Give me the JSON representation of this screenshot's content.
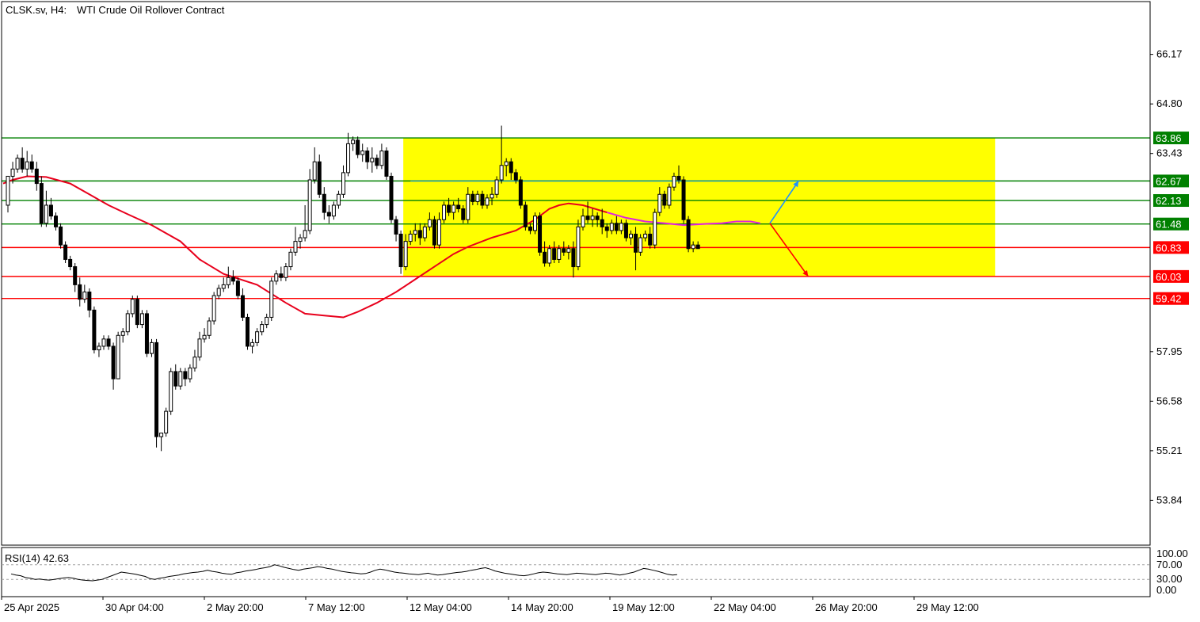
{
  "header": {
    "symbol_label": "CLSK.sv, H4:",
    "description": "WTI Crude Oil Rollover Contract"
  },
  "rsi": {
    "label": "RSI(14) 42.63",
    "period": 14,
    "value": 42.63,
    "levels": [
      "100.00",
      "70.00",
      "30.00",
      "0.00"
    ],
    "values": [
      45,
      42,
      40,
      35,
      33,
      30,
      31,
      29,
      28,
      30,
      32,
      34,
      35,
      33,
      30,
      28,
      27,
      26,
      28,
      30,
      35,
      40,
      45,
      50,
      48,
      46,
      44,
      41,
      38,
      32,
      30,
      33,
      35,
      38,
      40,
      42,
      45,
      47,
      49,
      50,
      52,
      55,
      52,
      50,
      47,
      45,
      44,
      48,
      50,
      53,
      55,
      57,
      60,
      62,
      65,
      70,
      67,
      63,
      60,
      57,
      55,
      58,
      60,
      62,
      65,
      63,
      60,
      58,
      55,
      52,
      50,
      48,
      47,
      45,
      46,
      50,
      55,
      58,
      56,
      53,
      50,
      48,
      47,
      45,
      44,
      43,
      45,
      47,
      44,
      42,
      43,
      45,
      47,
      49,
      50,
      52,
      55,
      57,
      60,
      62,
      58,
      53,
      50,
      47,
      45,
      43,
      41,
      40,
      42,
      45,
      48,
      50,
      49,
      47,
      45,
      44,
      43,
      45,
      47,
      46,
      45,
      44,
      43,
      45,
      47,
      46,
      44,
      42,
      44,
      47,
      50,
      55,
      60,
      58,
      55,
      52,
      48,
      44,
      42,
      43
    ]
  },
  "colors": {
    "support_line": "#ff0000",
    "resistance_line": "#008000",
    "ma_slow": "#e8001c",
    "ma_fast": "#e020e0",
    "range_box": "#ffff00",
    "mid_line": "#0095ff",
    "bull_candle": "#ffffff",
    "bear_candle": "#000000",
    "recent_candle": "#0000ff",
    "arrow_up": "#1e90ff",
    "arrow_down": "#ff0000"
  },
  "chart_data": {
    "type": "candlestick",
    "title": "CLSK.sv, H4:  WTI Crude Oil Rollover Contract",
    "ylim": [
      52.6,
      67.63
    ],
    "y_ticks": [
      "66.17",
      "64.80",
      "63.43",
      "57.95",
      "56.58",
      "55.21",
      "53.84"
    ],
    "x_ticks": [
      "25 Apr 2025",
      "30 Apr 04:00",
      "2 May 20:00",
      "7 May 12:00",
      "12 May 04:00",
      "14 May 20:00",
      "19 May 12:00",
      "22 May 04:00",
      "26 May 20:00",
      "29 May 12:00"
    ],
    "levels": [
      {
        "value": 63.86,
        "label": "63.86",
        "kind": "resistance"
      },
      {
        "value": 62.67,
        "label": "62.67",
        "kind": "resistance"
      },
      {
        "value": 62.13,
        "label": "62.13",
        "kind": "resistance"
      },
      {
        "value": 61.48,
        "label": "61.48",
        "kind": "resistance"
      },
      {
        "value": 60.83,
        "label": "60.83",
        "kind": "support"
      },
      {
        "value": 60.03,
        "label": "60.03",
        "kind": "support"
      },
      {
        "value": 59.42,
        "label": "59.42",
        "kind": "support"
      }
    ],
    "range_box": {
      "start_index": 83,
      "end_index": 206,
      "top": 63.86,
      "bottom": 60.03
    },
    "candles": [
      [
        62.0,
        62.8,
        61.8,
        62.8
      ],
      [
        62.8,
        63.2,
        62.6,
        63.0
      ],
      [
        63.0,
        63.4,
        62.9,
        63.3
      ],
      [
        63.3,
        63.6,
        62.9,
        63.0
      ],
      [
        63.0,
        63.5,
        62.8,
        63.2
      ],
      [
        63.2,
        63.4,
        62.9,
        63.0
      ],
      [
        63.0,
        63.2,
        62.4,
        62.6
      ],
      [
        62.6,
        62.8,
        61.4,
        61.5
      ],
      [
        61.5,
        62.4,
        61.4,
        62.0
      ],
      [
        62.0,
        62.2,
        61.6,
        61.7
      ],
      [
        61.7,
        61.8,
        61.3,
        61.4
      ],
      [
        61.4,
        61.5,
        60.8,
        60.9
      ],
      [
        60.9,
        61.0,
        60.4,
        60.5
      ],
      [
        60.5,
        60.6,
        60.2,
        60.3
      ],
      [
        60.3,
        60.4,
        59.6,
        59.8
      ],
      [
        59.8,
        60.0,
        59.2,
        59.4
      ],
      [
        59.4,
        59.8,
        59.3,
        59.6
      ],
      [
        59.6,
        59.7,
        58.9,
        59.1
      ],
      [
        59.1,
        59.2,
        57.9,
        58.0
      ],
      [
        58.0,
        58.2,
        57.8,
        58.1
      ],
      [
        58.1,
        58.4,
        58.0,
        58.3
      ],
      [
        58.3,
        58.4,
        58.0,
        58.1
      ],
      [
        58.1,
        58.2,
        56.9,
        57.2
      ],
      [
        57.2,
        58.5,
        57.2,
        58.4
      ],
      [
        58.4,
        58.6,
        58.2,
        58.5
      ],
      [
        58.5,
        59.1,
        58.4,
        59.0
      ],
      [
        59.0,
        59.5,
        58.9,
        59.4
      ],
      [
        59.4,
        59.5,
        58.6,
        58.7
      ],
      [
        58.7,
        59.1,
        58.6,
        59.0
      ],
      [
        59.0,
        59.1,
        57.8,
        57.9
      ],
      [
        57.9,
        58.3,
        57.8,
        58.2
      ],
      [
        58.2,
        58.3,
        55.3,
        55.6
      ],
      [
        55.6,
        55.7,
        55.2,
        55.7
      ],
      [
        55.7,
        56.4,
        55.6,
        56.3
      ],
      [
        56.3,
        57.5,
        56.2,
        57.4
      ],
      [
        57.4,
        57.6,
        56.9,
        57.0
      ],
      [
        57.0,
        57.5,
        56.9,
        57.4
      ],
      [
        57.4,
        57.5,
        57.0,
        57.2
      ],
      [
        57.2,
        57.6,
        57.1,
        57.5
      ],
      [
        57.5,
        58.0,
        57.4,
        57.8
      ],
      [
        57.8,
        58.5,
        57.7,
        58.3
      ],
      [
        58.3,
        58.6,
        58.2,
        58.4
      ],
      [
        58.4,
        58.9,
        58.3,
        58.8
      ],
      [
        58.8,
        59.6,
        58.7,
        59.5
      ],
      [
        59.5,
        59.8,
        59.4,
        59.7
      ],
      [
        59.7,
        60.0,
        59.6,
        59.8
      ],
      [
        59.8,
        60.3,
        59.7,
        60.0
      ],
      [
        60.0,
        60.2,
        59.8,
        59.9
      ],
      [
        59.9,
        60.0,
        59.4,
        59.5
      ],
      [
        59.5,
        59.7,
        58.8,
        58.9
      ],
      [
        58.9,
        59.0,
        58.0,
        58.1
      ],
      [
        58.1,
        58.3,
        57.9,
        58.2
      ],
      [
        58.2,
        58.6,
        58.1,
        58.5
      ],
      [
        58.5,
        58.8,
        58.4,
        58.7
      ],
      [
        58.7,
        59.0,
        58.6,
        58.9
      ],
      [
        58.9,
        60.0,
        58.8,
        59.9
      ],
      [
        59.9,
        60.2,
        59.8,
        60.1
      ],
      [
        60.1,
        60.3,
        59.9,
        60.0
      ],
      [
        60.0,
        60.4,
        59.9,
        60.3
      ],
      [
        60.3,
        60.8,
        60.2,
        60.7
      ],
      [
        60.7,
        61.4,
        60.6,
        61.0
      ],
      [
        61.0,
        61.2,
        60.8,
        61.1
      ],
      [
        61.1,
        62.0,
        61.0,
        61.3
      ],
      [
        61.3,
        63.0,
        61.2,
        62.7
      ],
      [
        62.7,
        63.6,
        62.6,
        63.2
      ],
      [
        63.2,
        63.4,
        62.2,
        62.3
      ],
      [
        62.3,
        62.5,
        61.6,
        61.8
      ],
      [
        61.8,
        62.0,
        61.5,
        61.7
      ],
      [
        61.7,
        62.1,
        61.6,
        62.0
      ],
      [
        62.0,
        62.4,
        61.9,
        62.3
      ],
      [
        62.3,
        63.1,
        62.2,
        62.9
      ],
      [
        62.9,
        64.0,
        62.8,
        63.7
      ],
      [
        63.7,
        63.9,
        63.5,
        63.8
      ],
      [
        63.8,
        63.9,
        63.3,
        63.4
      ],
      [
        63.4,
        63.7,
        63.2,
        63.5
      ],
      [
        63.5,
        63.6,
        63.0,
        63.2
      ],
      [
        63.2,
        63.6,
        62.9,
        63.3
      ],
      [
        63.3,
        63.4,
        63.0,
        63.1
      ],
      [
        63.1,
        63.7,
        63.0,
        63.5
      ],
      [
        63.5,
        63.6,
        62.7,
        62.8
      ],
      [
        62.8,
        62.9,
        61.5,
        61.6
      ],
      [
        61.6,
        61.7,
        61.0,
        61.2
      ],
      [
        61.2,
        61.3,
        60.1,
        60.3
      ],
      [
        60.3,
        61.2,
        60.2,
        61.0
      ],
      [
        61.0,
        61.3,
        60.9,
        61.2
      ],
      [
        61.2,
        61.5,
        61.0,
        61.3
      ],
      [
        61.3,
        61.5,
        60.9,
        61.1
      ],
      [
        61.1,
        61.5,
        61.0,
        61.4
      ],
      [
        61.4,
        61.8,
        61.3,
        61.6
      ],
      [
        61.6,
        61.7,
        60.8,
        60.9
      ],
      [
        60.9,
        61.8,
        60.8,
        61.6
      ],
      [
        61.6,
        62.1,
        61.5,
        62.0
      ],
      [
        62.0,
        62.2,
        61.7,
        61.8
      ],
      [
        61.8,
        62.1,
        61.6,
        62.0
      ],
      [
        62.0,
        62.2,
        61.8,
        61.9
      ],
      [
        61.9,
        62.0,
        61.5,
        61.6
      ],
      [
        61.6,
        62.5,
        61.5,
        62.3
      ],
      [
        62.3,
        62.4,
        62.0,
        62.1
      ],
      [
        62.1,
        62.4,
        62.0,
        62.3
      ],
      [
        62.3,
        62.4,
        61.9,
        62.0
      ],
      [
        62.0,
        62.3,
        61.9,
        62.2
      ],
      [
        62.2,
        62.5,
        62.0,
        62.3
      ],
      [
        62.3,
        62.8,
        62.2,
        62.7
      ],
      [
        62.7,
        64.2,
        62.6,
        63.1
      ],
      [
        63.1,
        63.3,
        62.8,
        63.2
      ],
      [
        63.2,
        63.3,
        62.7,
        62.9
      ],
      [
        62.9,
        63.0,
        62.6,
        62.7
      ],
      [
        62.7,
        62.8,
        61.9,
        62.0
      ],
      [
        62.0,
        62.1,
        61.3,
        61.4
      ],
      [
        61.4,
        61.5,
        61.2,
        61.3
      ],
      [
        61.3,
        61.8,
        61.2,
        61.7
      ],
      [
        61.7,
        61.8,
        60.6,
        60.7
      ],
      [
        60.7,
        61.0,
        60.3,
        60.4
      ],
      [
        60.4,
        60.9,
        60.3,
        60.8
      ],
      [
        60.8,
        61.0,
        60.4,
        60.5
      ],
      [
        60.5,
        60.9,
        60.4,
        60.8
      ],
      [
        60.8,
        61.0,
        60.6,
        60.7
      ],
      [
        60.7,
        60.9,
        60.5,
        60.8
      ],
      [
        60.8,
        61.0,
        60.0,
        60.3
      ],
      [
        60.3,
        61.6,
        60.2,
        61.4
      ],
      [
        61.4,
        61.9,
        61.3,
        61.7
      ],
      [
        61.7,
        62.1,
        61.5,
        61.6
      ],
      [
        61.6,
        61.9,
        61.4,
        61.7
      ],
      [
        61.7,
        61.8,
        61.4,
        61.6
      ],
      [
        61.6,
        61.9,
        61.2,
        61.4
      ],
      [
        61.4,
        61.5,
        61.1,
        61.3
      ],
      [
        61.3,
        61.6,
        61.2,
        61.5
      ],
      [
        61.5,
        61.7,
        61.2,
        61.3
      ],
      [
        61.3,
        61.6,
        61.2,
        61.5
      ],
      [
        61.5,
        61.6,
        61.0,
        61.1
      ],
      [
        61.1,
        61.3,
        60.9,
        61.2
      ],
      [
        61.2,
        61.4,
        60.2,
        60.7
      ],
      [
        60.7,
        61.2,
        60.6,
        61.1
      ],
      [
        61.1,
        61.3,
        61.0,
        61.2
      ],
      [
        61.2,
        61.4,
        60.8,
        60.9
      ],
      [
        60.9,
        61.9,
        60.8,
        61.8
      ],
      [
        61.8,
        62.5,
        61.7,
        62.3
      ],
      [
        62.3,
        62.4,
        61.9,
        62.0
      ],
      [
        62.0,
        62.6,
        61.9,
        62.5
      ],
      [
        62.5,
        62.9,
        62.4,
        62.8
      ],
      [
        62.8,
        63.1,
        62.6,
        62.7
      ],
      [
        62.7,
        62.8,
        61.5,
        61.6
      ],
      [
        61.6,
        61.7,
        60.7,
        60.8
      ],
      [
        60.8,
        61.0,
        60.7,
        60.9
      ],
      [
        60.9,
        61.0,
        60.8,
        60.8
      ]
    ],
    "ma_slow_points": [
      [
        -1,
        62.6
      ],
      [
        1,
        62.7
      ],
      [
        4,
        62.8
      ],
      [
        8,
        62.78
      ],
      [
        13,
        62.6
      ],
      [
        17,
        62.3
      ],
      [
        21,
        62.0
      ],
      [
        25,
        61.75
      ],
      [
        30,
        61.45
      ],
      [
        36,
        61.0
      ],
      [
        40,
        60.5
      ],
      [
        45,
        60.1
      ],
      [
        52,
        59.8
      ],
      [
        58,
        59.3
      ],
      [
        62,
        59.0
      ],
      [
        66,
        58.95
      ],
      [
        70,
        58.9
      ],
      [
        73,
        59.05
      ],
      [
        77,
        59.3
      ],
      [
        81,
        59.6
      ],
      [
        85,
        59.95
      ],
      [
        89,
        60.3
      ],
      [
        93,
        60.65
      ],
      [
        96,
        60.85
      ],
      [
        101,
        61.1
      ],
      [
        106,
        61.3
      ],
      [
        110,
        61.6
      ],
      [
        113,
        61.9
      ],
      [
        115,
        62.0
      ],
      [
        117,
        62.05
      ],
      [
        120,
        62.0
      ],
      [
        125,
        61.8
      ]
    ],
    "ma_fast_points": [
      [
        125,
        61.8
      ],
      [
        129,
        61.65
      ],
      [
        133,
        61.55
      ],
      [
        137,
        61.5
      ],
      [
        141,
        61.45
      ],
      [
        145,
        61.48
      ],
      [
        149,
        61.5
      ],
      [
        152,
        61.55
      ],
      [
        155,
        61.55
      ],
      [
        157,
        61.5
      ]
    ],
    "mid_line_points": [
      [
        84,
        62.67
      ],
      [
        206,
        62.67
      ]
    ],
    "arrows": [
      {
        "from": [
          159,
          61.5
        ],
        "to": [
          165,
          62.67
        ],
        "direction": "up"
      },
      {
        "from": [
          159,
          61.5
        ],
        "to": [
          167,
          60.03
        ],
        "direction": "down"
      }
    ]
  }
}
